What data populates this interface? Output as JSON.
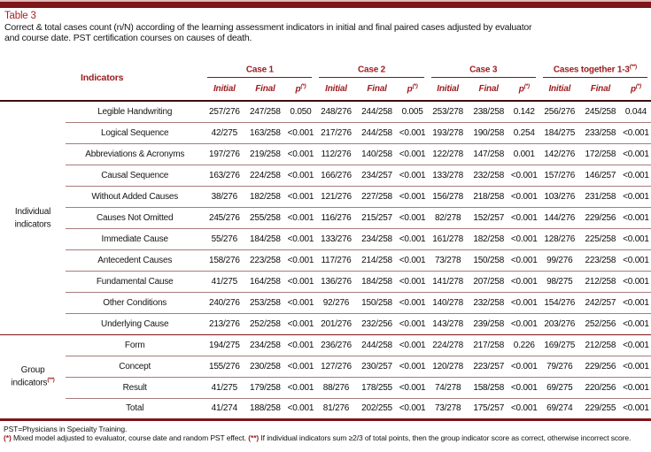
{
  "page": {
    "title": "Table 3",
    "subtitle_lines": [
      "Correct & total cases count (n/N) according of the learning assessment indicators in initial and final paired cases adjusted by evaluator",
      "and course date. PST certification courses on causes of death."
    ]
  },
  "colors": {
    "maroon_bar": "#7d1619",
    "header_red": "#9c1b1e",
    "title_red": "#b02125",
    "row_line": "#a87c7c"
  },
  "table": {
    "header": {
      "indicators_label": "Indicators",
      "groups": [
        {
          "label": "Case 1",
          "sup": ""
        },
        {
          "label": "Case 2",
          "sup": ""
        },
        {
          "label": "Case 3",
          "sup": ""
        },
        {
          "label": "Cases together 1-3",
          "sup": "(**)"
        }
      ],
      "subcols": {
        "initial": "Initial",
        "final": "Final",
        "p": "p",
        "p_sup": "(*)"
      }
    },
    "sections": [
      {
        "group_label": "Individual indicators",
        "group_sup": "",
        "rows": [
          {
            "indicator": "Legible Handwriting",
            "values": [
              "257/276",
              "247/258",
              "0.050",
              "248/276",
              "244/258",
              "0.005",
              "253/278",
              "238/258",
              "0.142",
              "256/276",
              "245/258",
              "0.044"
            ]
          },
          {
            "indicator": "Logical Sequence",
            "values": [
              "42/275",
              "163/258",
              "<0.001",
              "217/276",
              "244/258",
              "<0.001",
              "193/278",
              "190/258",
              "0.254",
              "184/275",
              "233/258",
              "<0.001"
            ]
          },
          {
            "indicator": "Abbreviations & Acronyms",
            "values": [
              "197/276",
              "219/258",
              "<0.001",
              "112/276",
              "140/258",
              "<0.001",
              "122/278",
              "147/258",
              "0.001",
              "142/276",
              "172/258",
              "<0.001"
            ]
          },
          {
            "indicator": "Causal Sequence",
            "values": [
              "163/276",
              "224/258",
              "<0.001",
              "166/276",
              "234/257",
              "<0.001",
              "133/278",
              "232/258",
              "<0.001",
              "157/276",
              "146/257",
              "<0.001"
            ]
          },
          {
            "indicator": "Without Added Causes",
            "values": [
              "38/276",
              "182/258",
              "<0.001",
              "121/276",
              "227/258",
              "<0.001",
              "156/278",
              "218/258",
              "<0.001",
              "103/276",
              "231/258",
              "<0.001"
            ]
          },
          {
            "indicator": "Causes Not Omitted",
            "values": [
              "245/276",
              "255/258",
              "<0.001",
              "116/276",
              "215/257",
              "<0.001",
              "82/278",
              "152/257",
              "<0.001",
              "144/276",
              "229/256",
              "<0.001"
            ]
          },
          {
            "indicator": "Immediate Cause",
            "values": [
              "55/276",
              "184/258",
              "<0.001",
              "133/276",
              "234/258",
              "<0.001",
              "161/278",
              "182/258",
              "<0.001",
              "128/276",
              "225/258",
              "<0.001"
            ]
          },
          {
            "indicator": "Antecedent Causes",
            "values": [
              "158/276",
              "223/258",
              "<0.001",
              "117/276",
              "214/258",
              "<0.001",
              "73/278",
              "150/258",
              "<0.001",
              "99/276",
              "223/258",
              "<0.001"
            ]
          },
          {
            "indicator": "Fundamental Cause",
            "values": [
              "41/275",
              "164/258",
              "<0.001",
              "136/276",
              "184/258",
              "<0.001",
              "141/278",
              "207/258",
              "<0.001",
              "98/275",
              "212/258",
              "<0.001"
            ]
          },
          {
            "indicator": "Other Conditions",
            "values": [
              "240/276",
              "253/258",
              "<0.001",
              "92/276",
              "150/258",
              "<0.001",
              "140/278",
              "232/258",
              "<0.001",
              "154/276",
              "242/257",
              "<0.001"
            ]
          },
          {
            "indicator": "Underlying Cause",
            "values": [
              "213/276",
              "252/258",
              "<0.001",
              "201/276",
              "232/256",
              "<0.001",
              "143/278",
              "239/258",
              "<0.001",
              "203/276",
              "252/256",
              "<0.001"
            ]
          }
        ]
      },
      {
        "group_label": "Group indicators",
        "group_sup": "(**)",
        "rows": [
          {
            "indicator": "Form",
            "values": [
              "194/275",
              "234/258",
              "<0.001",
              "236/276",
              "244/258",
              "<0.001",
              "224/278",
              "217/258",
              "0.226",
              "169/275",
              "212/258",
              "<0.001"
            ]
          },
          {
            "indicator": "Concept",
            "values": [
              "155/276",
              "230/258",
              "<0.001",
              "127/276",
              "230/257",
              "<0.001",
              "120/278",
              "223/257",
              "<0.001",
              "79/276",
              "229/256",
              "<0.001"
            ]
          },
          {
            "indicator": "Result",
            "values": [
              "41/275",
              "179/258",
              "<0.001",
              "88/276",
              "178/255",
              "<0.001",
              "74/278",
              "158/258",
              "<0.001",
              "69/275",
              "220/256",
              "<0.001"
            ]
          },
          {
            "indicator": "Total",
            "values": [
              "41/274",
              "188/258",
              "<0.001",
              "81/276",
              "202/255",
              "<0.001",
              "73/278",
              "175/257",
              "<0.001",
              "69/274",
              "229/255",
              "<0.001"
            ]
          }
        ]
      }
    ]
  },
  "footnotes": {
    "line1": "PST=Physicians in Specialty Training.",
    "note1_marker": "(*)",
    "note1_text": "Mixed model adjusted to evaluator, course date and random PST effect.",
    "note2_marker": "(**)",
    "note2_text": "If individual indicators sum ≥2/3 of total points, then the group indicator score as correct, otherwise incorrect score."
  }
}
